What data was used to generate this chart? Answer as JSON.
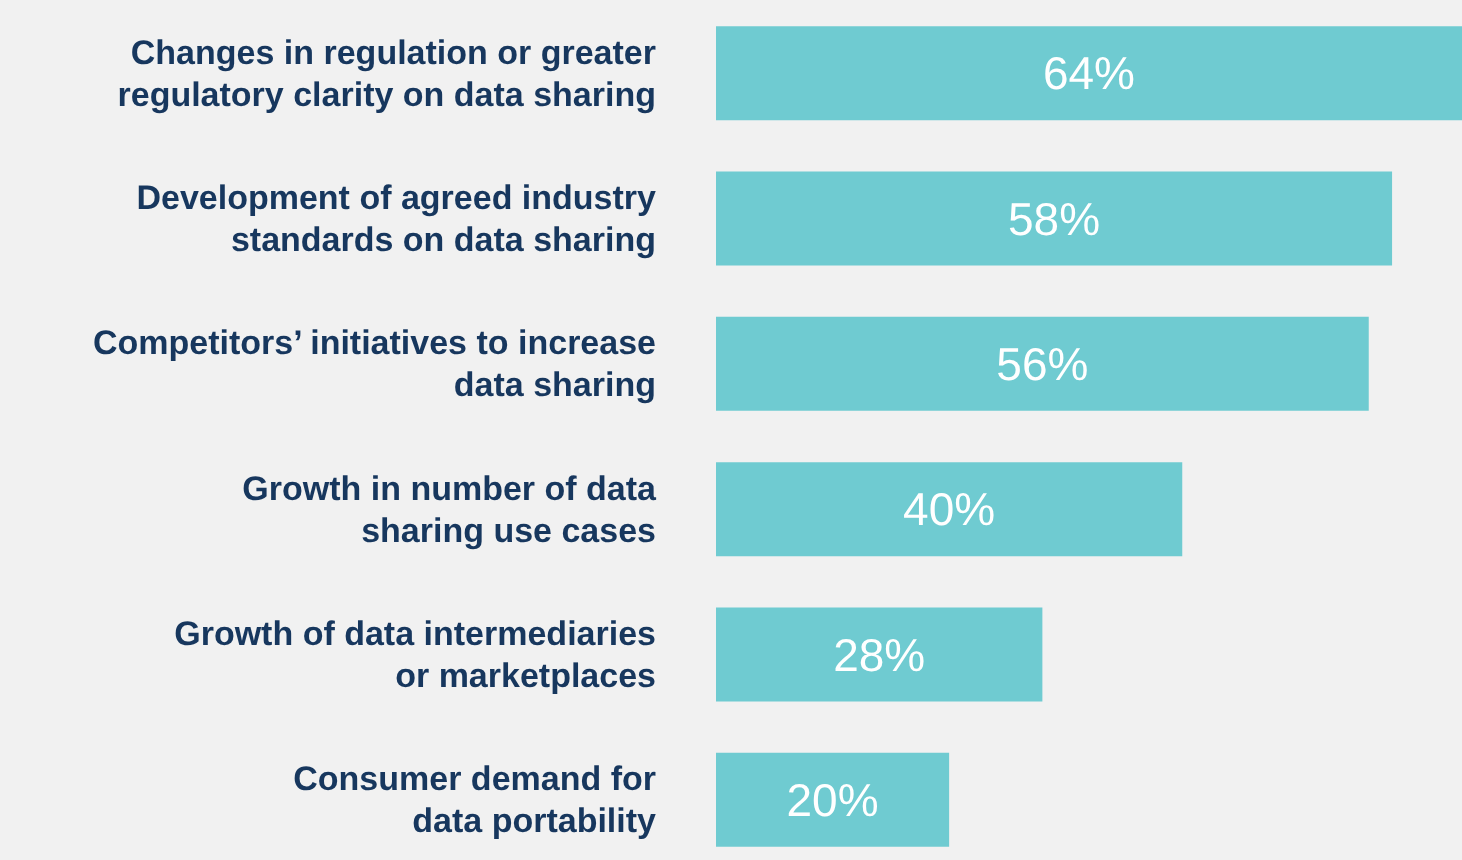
{
  "chart_data": {
    "type": "bar",
    "orientation": "horizontal",
    "data_labels": true,
    "color": "#6fcbd1",
    "categories": [
      "Changes in regulation or greater\nregulatory clarity on data sharing",
      "Development of agreed industry\nstandards on data sharing",
      "Competitors’ initiatives to increase\ndata sharing",
      "Growth in number of data\nsharing use cases",
      "Growth of data intermediaries\nor marketplaces",
      "Consumer demand for\ndata portability"
    ],
    "values": [
      64,
      58,
      56,
      40,
      28,
      20
    ],
    "value_labels": [
      "64%",
      "58%",
      "56%",
      "40%",
      "28%",
      "20%"
    ]
  }
}
